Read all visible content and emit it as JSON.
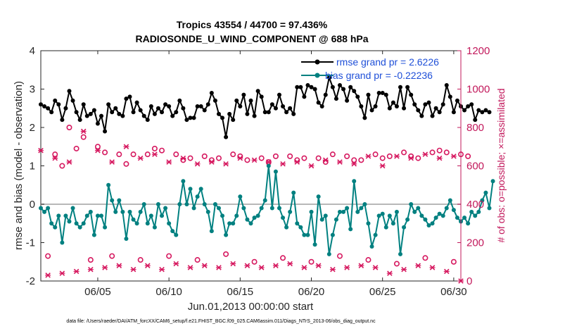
{
  "chart_data": {
    "type": "line",
    "title_line1": "Tropics 43554 / 44700 = 97.436%",
    "title_line2": "RADIOSONDE_U_WIND_COMPONENT @ 688 hPa",
    "xlabel": "Jun.01,2013 00:00:00 start",
    "ylabel_left": "rmse and bias (model - observation)",
    "ylabel_right": "# of obs: o=possible; ×=assimilated",
    "xlim": [
      1,
      30.5
    ],
    "ylim_left": [
      -2,
      4
    ],
    "ylim_right": [
      0,
      1200
    ],
    "left_ticks": [
      -2,
      -1,
      0,
      1,
      2,
      3,
      4
    ],
    "right_ticks": [
      0,
      200,
      400,
      600,
      800,
      1000,
      1200
    ],
    "x_ticks": [
      {
        "value": 5,
        "label": "06/05"
      },
      {
        "value": 10,
        "label": "06/10"
      },
      {
        "value": 15,
        "label": "06/15"
      },
      {
        "value": 20,
        "label": "06/20"
      },
      {
        "value": 25,
        "label": "06/25"
      },
      {
        "value": 30,
        "label": "06/30"
      }
    ],
    "x_start": 1.0,
    "x_step": 0.25,
    "zero_line": 0,
    "series": [
      {
        "name": "rmse grand pr = 2.6226",
        "color": "#000000",
        "axis": "left",
        "values": [
          2.6,
          2.55,
          2.5,
          2.4,
          2.7,
          2.6,
          2.2,
          2.5,
          2.95,
          2.7,
          2.4,
          2.2,
          2.6,
          2.3,
          2.35,
          2.45,
          2.1,
          2.3,
          1.9,
          2.6,
          2.4,
          2.5,
          2.35,
          2.3,
          2.75,
          2.8,
          2.4,
          2.65,
          2.45,
          2.3,
          2.2,
          2.55,
          2.35,
          2.5,
          2.4,
          2.6,
          2.55,
          2.3,
          2.4,
          2.7,
          2.5,
          2.2,
          2.25,
          2.25,
          2.55,
          2.55,
          2.45,
          2.6,
          2.9,
          2.7,
          2.35,
          2.25,
          1.75,
          2.35,
          2.2,
          2.7,
          2.55,
          2.85,
          2.35,
          2.7,
          2.3,
          2.95,
          2.8,
          2.4,
          2.4,
          2.6,
          2.5,
          2.85,
          2.55,
          2.4,
          2.5,
          2.35,
          3.05,
          3.05,
          2.8,
          3.1,
          3.05,
          3.0,
          2.65,
          2.55,
          2.85,
          3.3,
          3.05,
          2.75,
          3.1,
          3.0,
          2.7,
          3.05,
          2.95,
          2.8,
          2.55,
          2.25,
          2.85,
          2.45,
          2.55,
          2.9,
          2.9,
          2.85,
          2.5,
          2.65,
          2.55,
          3.05,
          2.5,
          3.05,
          2.85,
          2.6,
          2.45,
          2.3,
          2.6,
          2.65,
          2.3,
          2.5,
          2.4,
          2.6,
          3.1,
          2.8,
          2.4,
          2.7,
          2.55,
          2.45,
          2.55,
          2.6,
          2.2,
          2.45,
          2.4,
          2.45,
          2.4
        ]
      },
      {
        "name": "bias grand pr = -0.22236",
        "color": "#008080",
        "axis": "left",
        "values": [
          -0.1,
          -0.2,
          -0.1,
          -0.5,
          -0.6,
          -0.3,
          -1.0,
          -0.3,
          -0.45,
          -0.1,
          -0.5,
          -0.6,
          -0.5,
          -0.3,
          -0.2,
          -0.8,
          -0.3,
          -0.3,
          -0.6,
          0.5,
          0.1,
          -0.2,
          0.1,
          -0.2,
          -0.9,
          -0.2,
          -0.4,
          -0.5,
          -0.2,
          0.0,
          -0.5,
          -0.3,
          -0.6,
          0.0,
          -0.3,
          -0.1,
          -0.5,
          -0.7,
          -0.8,
          0.0,
          0.6,
          0.0,
          0.4,
          -0.1,
          0.2,
          0.4,
          0.0,
          -0.2,
          -0.7,
          0.0,
          -0.1,
          -0.3,
          -0.8,
          -0.5,
          -0.5,
          -0.3,
          0.2,
          -0.1,
          -0.4,
          -0.5,
          -0.35,
          -0.3,
          -0.1,
          0.1,
          1.0,
          -0.1,
          0.85,
          -0.1,
          -0.35,
          -0.6,
          -0.2,
          0.3,
          -0.5,
          -0.6,
          -0.8,
          -0.8,
          -0.2,
          -1.05,
          0.2,
          -0.4,
          -0.3,
          -1.3,
          -0.8,
          -0.4,
          -0.2,
          -0.2,
          -0.1,
          -0.65,
          0.6,
          -0.2,
          -0.1,
          0.0,
          -0.5,
          -1.1,
          -0.8,
          -0.3,
          -0.25,
          -0.6,
          -0.3,
          -0.5,
          -0.2,
          -1.3,
          -0.6,
          -0.4,
          0.0,
          -0.2,
          -0.1,
          -0.3,
          -0.4,
          -0.55,
          -0.5,
          -0.35,
          -0.25,
          -0.3,
          -0.1,
          0.1,
          -0.15,
          -0.35,
          -0.45,
          -0.35,
          -0.5,
          -0.2,
          -0.3,
          -0.2,
          0.1,
          0.3,
          -0.1,
          0.6
        ]
      },
      {
        "name": "obs possible",
        "color": "#d6185f",
        "axis": "right",
        "marker": "circle",
        "x_start": 1.5,
        "x_step": 0.5,
        "values": [
          130,
          660,
          600,
          800,
          690,
          750,
          110,
          700,
          670,
          130,
          660,
          610,
          660,
          110,
          660,
          690,
          680,
          130,
          660,
          630,
          640,
          110,
          650,
          630,
          640,
          140,
          660,
          650,
          630,
          100,
          640,
          620,
          650,
          120,
          650,
          630,
          640,
          100,
          640,
          620,
          660,
          130,
          650,
          630,
          630,
          110,
          660,
          640,
          650,
          90,
          670,
          650,
          640,
          120,
          670,
          680,
          670,
          100,
          660,
          650
        ]
      },
      {
        "name": "obs assimilated",
        "color": "#d6185f",
        "axis": "right",
        "marker": "x",
        "x_start": 1.0,
        "x_step": 0.5,
        "values": [
          680,
          30,
          640,
          40,
          620,
          50,
          780,
          60,
          680,
          70,
          620,
          80,
          700,
          60,
          640,
          80,
          660,
          60,
          620,
          90,
          640,
          70,
          610,
          80,
          620,
          70,
          610,
          90,
          640,
          80,
          630,
          70,
          620,
          80,
          610,
          90,
          620,
          70,
          600,
          80,
          630,
          60,
          620,
          70,
          610,
          80,
          650,
          70,
          600,
          40,
          650,
          60,
          640,
          80,
          660,
          70,
          640,
          50,
          650,
          0
        ]
      }
    ],
    "footnote": "data file: /Users/raeder/DAI/ATM_forcXX/CAM6_setup/f.e21.FHIST_BGC.f09_025.CAM6assim.011/Diags_NTrS_2013-06/obs_diag_output.nc"
  }
}
